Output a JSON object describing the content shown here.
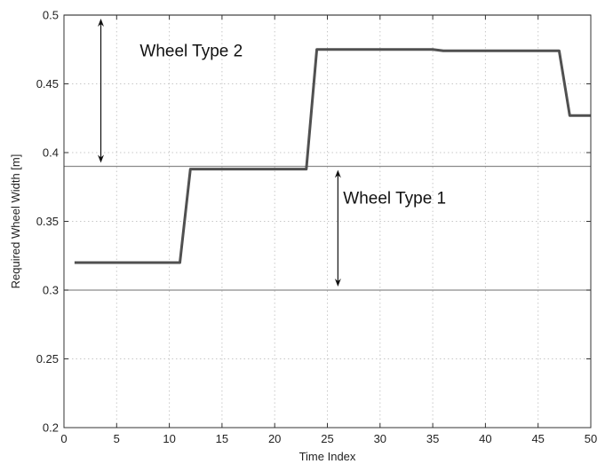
{
  "chart_data": {
    "type": "line",
    "xlabel": "Time Index",
    "ylabel": "Required Wheel Width [m]",
    "xlim": [
      0,
      50
    ],
    "ylim": [
      0.2,
      0.5
    ],
    "xticks": [
      0,
      5,
      10,
      15,
      20,
      25,
      30,
      35,
      40,
      45,
      50
    ],
    "yticks": [
      0.2,
      0.25,
      0.3,
      0.35,
      0.4,
      0.45,
      0.5
    ],
    "xtick_labels": [
      "0",
      "5",
      "10",
      "15",
      "20",
      "25",
      "30",
      "35",
      "40",
      "45",
      "50"
    ],
    "ytick_labels": [
      "0.2",
      "0.25",
      "0.3",
      "0.35",
      "0.4",
      "0.45",
      "0.5"
    ],
    "grid": true,
    "series": [
      {
        "x": [
          1,
          11,
          12,
          23,
          24,
          35,
          36,
          47,
          48,
          50
        ],
        "y": [
          0.32,
          0.32,
          0.388,
          0.388,
          0.475,
          0.475,
          0.474,
          0.474,
          0.427,
          0.427
        ]
      }
    ],
    "reference_lines": [
      0.3,
      0.39,
      0.5
    ],
    "annotations": [
      {
        "text": "Wheel Type 2",
        "x": 7.2,
        "y": 0.47,
        "arrow_x": 3.5,
        "arrow_from": 0.5,
        "arrow_to": 0.39
      },
      {
        "text": "Wheel Type 1",
        "x": 26.5,
        "y": 0.363,
        "arrow_x": 26.0,
        "arrow_from": 0.39,
        "arrow_to": 0.3
      }
    ],
    "colors": {
      "series": "#505050",
      "reference": "#8a8a8a",
      "grid": "#c8c8c8"
    }
  }
}
